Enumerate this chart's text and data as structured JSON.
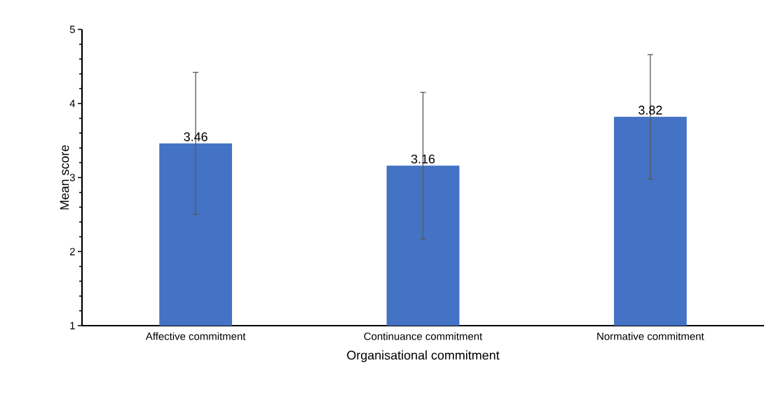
{
  "chart_data": {
    "type": "bar",
    "xlabel": "Organisational commitment",
    "ylabel": "Mean score",
    "categories": [
      "Affective commitment",
      "Continuance commitment",
      "Normative commitment"
    ],
    "values": [
      3.46,
      3.16,
      3.82
    ],
    "errors": [
      0.96,
      0.99,
      0.84
    ],
    "color": "#4472c4",
    "ylim": [
      1,
      5
    ],
    "yticks": [
      1,
      2,
      3,
      4,
      5
    ],
    "data_labels": true
  }
}
